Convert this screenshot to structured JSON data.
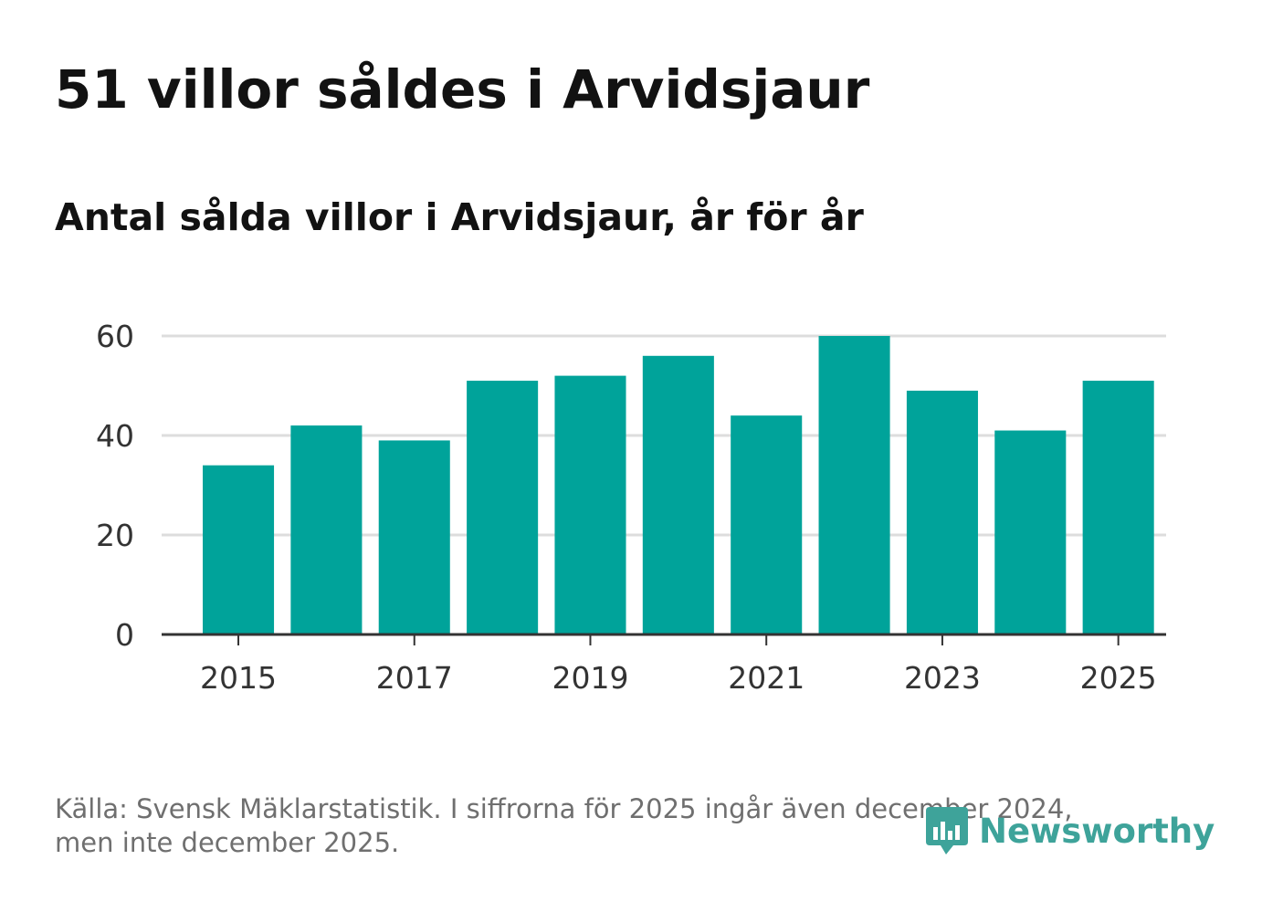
{
  "title": "51 villor såldes i Arvidsjaur",
  "subtitle": "Antal sålda villor i Arvidsjaur, år för år",
  "footer": {
    "line1": "Källa: Svensk Mäklarstatistik. I siffrorna för 2025 ingår även december 2024,",
    "line2": "men inte december 2025."
  },
  "brand": {
    "name": "Newsworthy",
    "icon": "chart-bubble-icon",
    "color": "#3ea39a"
  },
  "colors": {
    "bar": "#00a39a",
    "grid": "#dddddd",
    "axis": "#333333",
    "tick_text": "#333333"
  },
  "chart_data": {
    "type": "bar",
    "title": "51 villor såldes i Arvidsjaur",
    "subtitle": "Antal sålda villor i Arvidsjaur, år för år",
    "xlabel": "",
    "ylabel": "",
    "categories": [
      "2015",
      "2016",
      "2017",
      "2018",
      "2019",
      "2020",
      "2021",
      "2022",
      "2023",
      "2024",
      "2025"
    ],
    "values": [
      34,
      42,
      39,
      51,
      52,
      56,
      44,
      60,
      49,
      41,
      51
    ],
    "ylim": [
      0,
      60
    ],
    "yticks": [
      "0",
      "20",
      "40",
      "60"
    ],
    "xticks": [
      "2015",
      "2017",
      "2019",
      "2021",
      "2023",
      "2025"
    ],
    "grid": true,
    "legend": "none"
  }
}
